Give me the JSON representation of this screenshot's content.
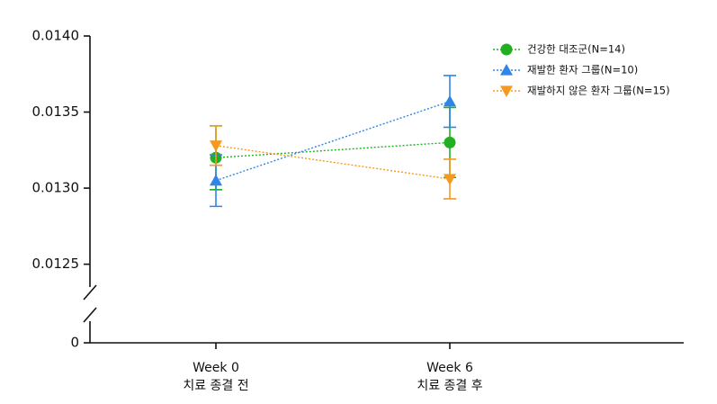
{
  "chart_data": {
    "type": "line",
    "categories": [
      "Week 0",
      "Week 6"
    ],
    "category_sublabels": [
      "치료 종결 전",
      "치료 종결 후"
    ],
    "series": [
      {
        "name": "건강한 대조군(N=14)",
        "color": "#22b022",
        "marker": "circle",
        "values": [
          0.0132,
          0.0133
        ],
        "errors": [
          0.00021,
          0.00023
        ]
      },
      {
        "name": "재발한 환자 그룹(N=10)",
        "color": "#2f86e8",
        "marker": "triangle-up",
        "values": [
          0.01305,
          0.01357
        ],
        "errors": [
          0.00017,
          0.00017
        ]
      },
      {
        "name": "재발하지 않은 환자 그룹(N=15)",
        "color": "#f59a1e",
        "marker": "triangle-down",
        "values": [
          0.01328,
          0.01306
        ],
        "errors": [
          0.00013,
          0.00013
        ]
      }
    ],
    "ylim": [
      0.01235,
      0.014
    ],
    "yticks": [
      {
        "value": 0.014,
        "label": "0.0140"
      },
      0.0135,
      {
        "value": 0.013,
        "label": "0.0130"
      },
      0.0125
    ],
    "y_break_tick": 0,
    "legend": "top-right"
  }
}
